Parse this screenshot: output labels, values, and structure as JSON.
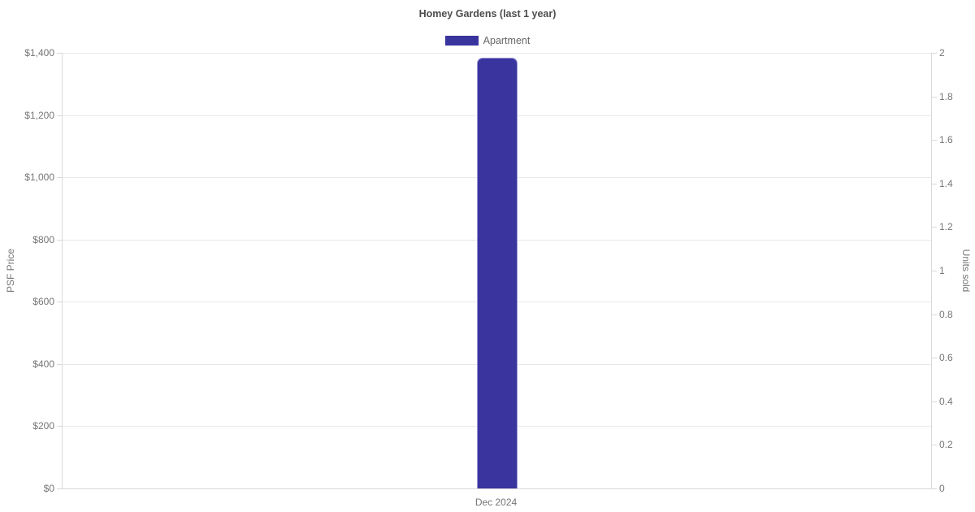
{
  "chart_data": {
    "type": "bar",
    "title": "Homey Gardens (last 1 year)",
    "categories": [
      "Dec 2024"
    ],
    "series": [
      {
        "name": "Apartment",
        "axis": "left",
        "values": [
          1385
        ],
        "color": "#39349e"
      }
    ],
    "left_axis": {
      "label": "PSF Price",
      "min": 0,
      "max": 1400,
      "step": 200,
      "ticks": [
        {
          "value": 0,
          "label": "$0"
        },
        {
          "value": 200,
          "label": "$200"
        },
        {
          "value": 400,
          "label": "$400"
        },
        {
          "value": 600,
          "label": "$600"
        },
        {
          "value": 800,
          "label": "$800"
        },
        {
          "value": 1000,
          "label": "$1,000"
        },
        {
          "value": 1200,
          "label": "$1,200"
        },
        {
          "value": 1400,
          "label": "$1,400"
        }
      ]
    },
    "right_axis": {
      "label": "Units sold",
      "min": 0,
      "max": 2,
      "step": 0.2,
      "ticks": [
        {
          "value": 0,
          "label": "0"
        },
        {
          "value": 0.2,
          "label": "0.2"
        },
        {
          "value": 0.4,
          "label": "0.4"
        },
        {
          "value": 0.6,
          "label": "0.6"
        },
        {
          "value": 0.8,
          "label": "0.8"
        },
        {
          "value": 1,
          "label": "1"
        },
        {
          "value": 1.2,
          "label": "1.2"
        },
        {
          "value": 1.4,
          "label": "1.4"
        },
        {
          "value": 1.6,
          "label": "1.6"
        },
        {
          "value": 1.8,
          "label": "1.8"
        },
        {
          "value": 2,
          "label": "2"
        }
      ]
    },
    "grid": true,
    "legend_position": "top"
  }
}
